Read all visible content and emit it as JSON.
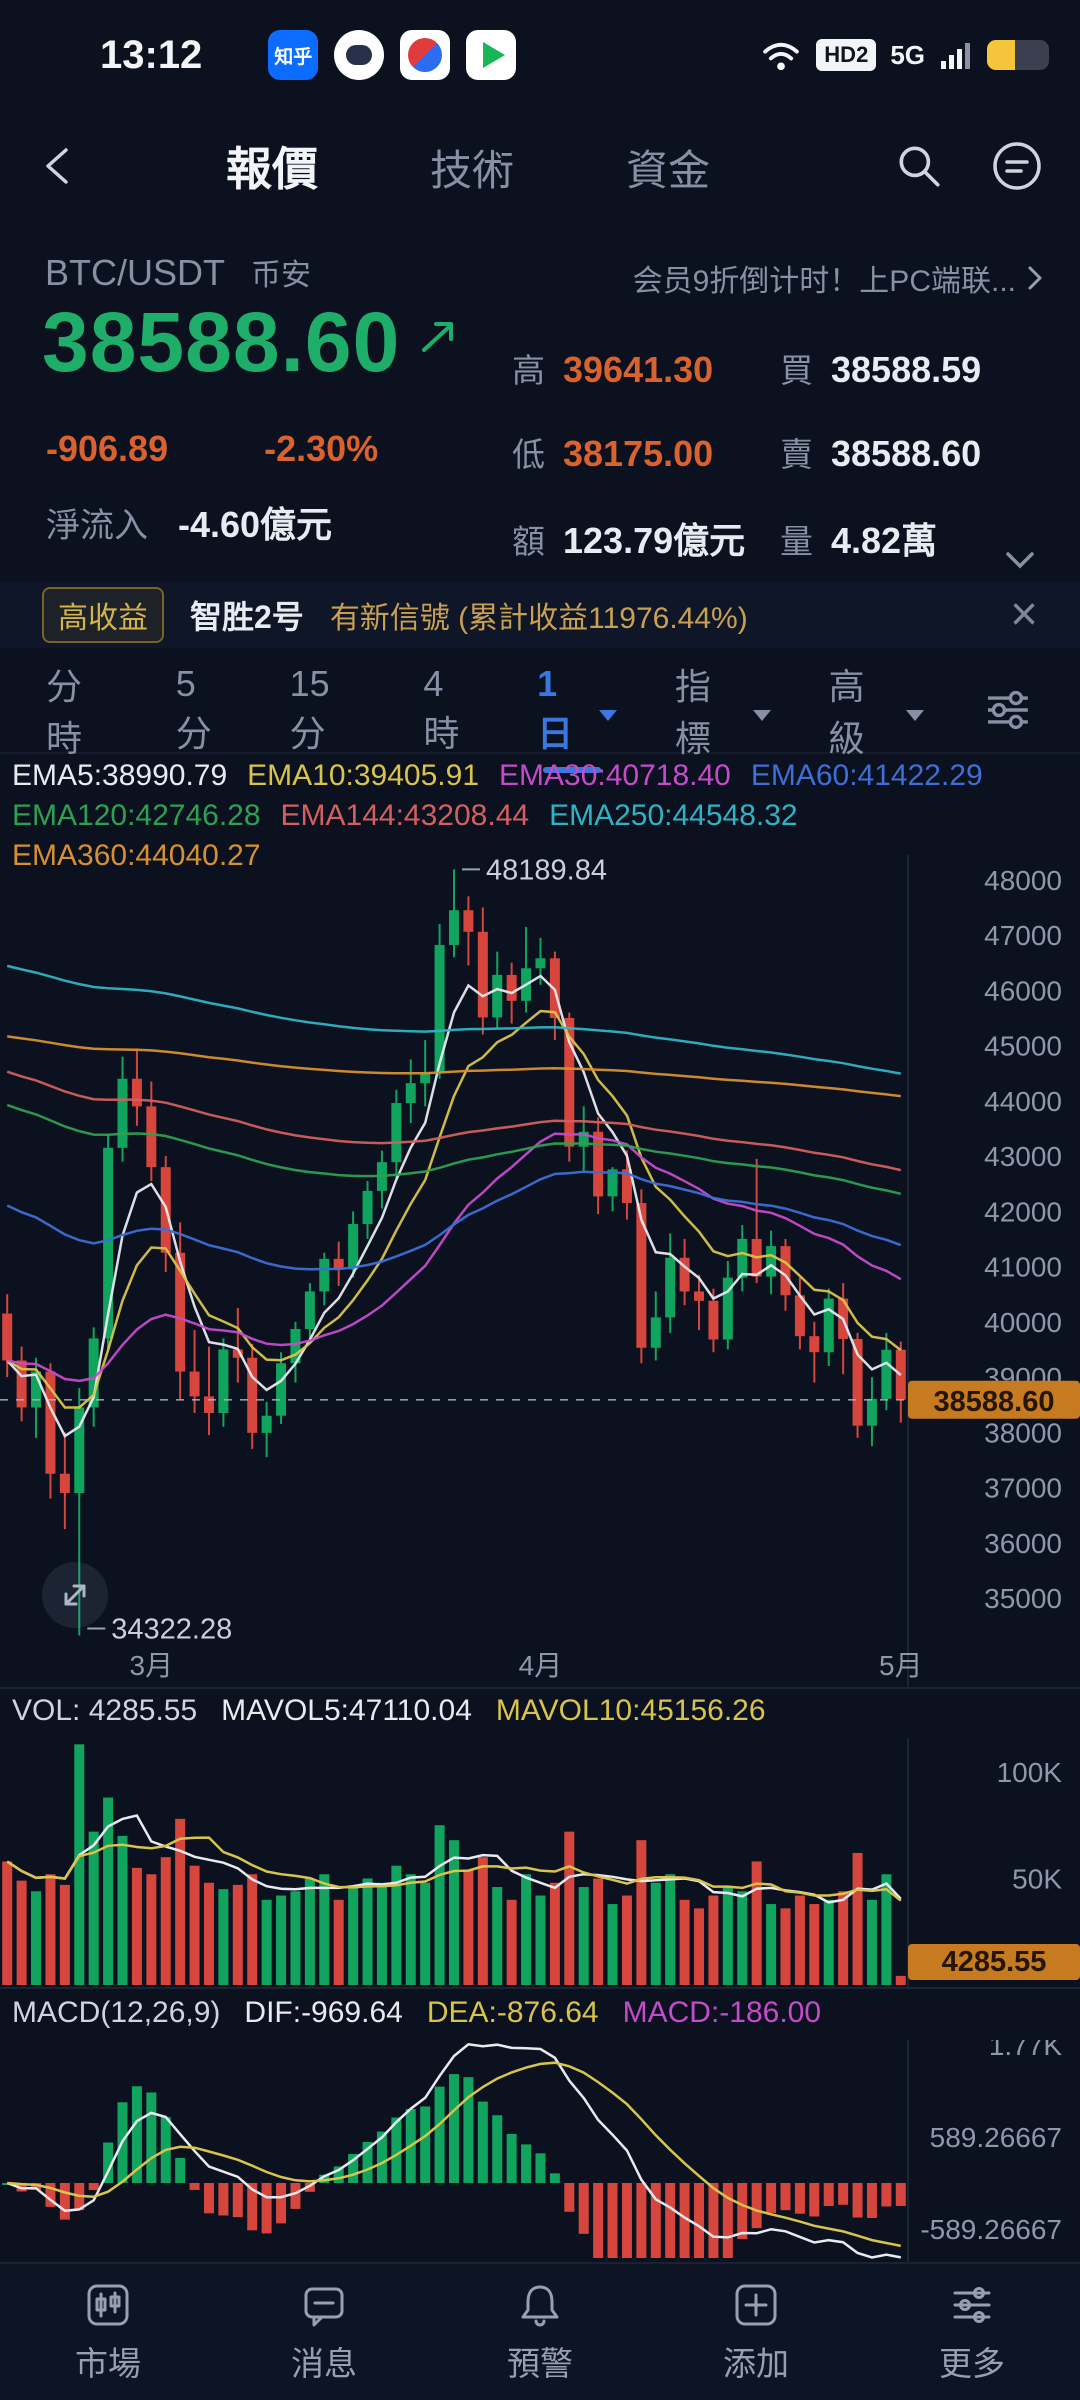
{
  "colors": {
    "up": "#10a45e",
    "down": "#d6463c",
    "down_text": "#d9622f",
    "price_up": "#1fae6a",
    "accent": "#3b77e0",
    "yellow": "#d9c44b",
    "magenta": "#c44ccb",
    "gold": "#c9a052",
    "tag_bg": "#c77b20"
  },
  "status_bar": {
    "time": "13:12",
    "zhihu_badge": "知乎",
    "hd_badge": "HD2",
    "network": "5G"
  },
  "nav": {
    "tabs": [
      {
        "label": "報價"
      },
      {
        "label": "技術"
      },
      {
        "label": "資金"
      }
    ]
  },
  "quote": {
    "symbol": "BTC/USDT",
    "exchange": "币安",
    "promo": "会员9折倒计时！上PC端联...",
    "price": "38588.60",
    "change": "-906.89",
    "change_pct": "-2.30%",
    "net_inflow_label": "淨流入",
    "net_inflow_value": "-4.60億元",
    "stats": [
      {
        "label": "高",
        "value": "39641.30"
      },
      {
        "label": "買",
        "value": "38588.59"
      },
      {
        "label": "低",
        "value": "38175.00"
      },
      {
        "label": "賣",
        "value": "38588.60"
      },
      {
        "label": "額",
        "value": "123.79億元"
      },
      {
        "label": "量",
        "value": "4.82萬"
      }
    ]
  },
  "banner": {
    "badge": "高收益",
    "name": "智胜2号",
    "message": "有新信號 (累計收益11976.44%)",
    "close": "×"
  },
  "timeframe": {
    "items": [
      {
        "label": "分時"
      },
      {
        "label": "5分"
      },
      {
        "label": "15分"
      },
      {
        "label": "4時"
      },
      {
        "label": "1日",
        "active": true,
        "caret": true
      },
      {
        "label": "指標",
        "caret": true
      },
      {
        "label": "高級",
        "caret": true
      }
    ]
  },
  "chart_data": {
    "type": "candlestick",
    "symbol": "BTC/USDT",
    "interval": "1日",
    "price_range": {
      "max": 48450,
      "min": 34150
    },
    "y_ticks": [
      48000,
      47000,
      46000,
      45000,
      44000,
      43000,
      42000,
      41000,
      40000,
      39000,
      38000,
      37000,
      36000,
      35000
    ],
    "month_ticks": [
      {
        "label": "3月",
        "index": 10
      },
      {
        "label": "4月",
        "index": 37
      },
      {
        "label": "5月",
        "index": 62
      }
    ],
    "high_annotation": {
      "label": "48189.84",
      "value": 48189.84,
      "index": 31
    },
    "low_annotation": {
      "label": "34322.28",
      "value": 34322.28,
      "index": 5
    },
    "current_price": 38588.6,
    "current_price_label": "38588.60",
    "emas": [
      {
        "label": "EMA5:38990.79",
        "period": 5,
        "seed": null,
        "color": "#e8eaf0"
      },
      {
        "label": "EMA10:39405.91",
        "period": 10,
        "seed": null,
        "color": "#d9c44b"
      },
      {
        "label": "EMA30:40718.40",
        "period": 30,
        "seed": null,
        "color": "#c44ccb"
      },
      {
        "label": "EMA60:41422.29",
        "period": 60,
        "seed": 42200,
        "color": "#3d6fd6"
      },
      {
        "label": "EMA120:42746.28",
        "period": 120,
        "seed": 44000,
        "color": "#2ea052"
      },
      {
        "label": "EMA144:43208.44",
        "period": 144,
        "seed": 44600,
        "color": "#d45f5f"
      },
      {
        "label": "EMA250:44548.32",
        "period": 250,
        "seed": 46500,
        "color": "#2fb3c4"
      },
      {
        "label": "EMA360:44040.27",
        "period": 360,
        "seed": 45200,
        "color": "#d7902f"
      }
    ],
    "candles": [
      [
        40150,
        40500,
        39000,
        39300
      ],
      [
        39300,
        39550,
        38200,
        38450
      ],
      [
        38450,
        39350,
        37900,
        39100
      ],
      [
        39100,
        39250,
        36800,
        37250
      ],
      [
        37250,
        38000,
        36250,
        36900
      ],
      [
        36900,
        38800,
        34322.28,
        38450
      ],
      [
        38450,
        39900,
        38100,
        39700
      ],
      [
        39700,
        43400,
        39500,
        43150
      ],
      [
        43150,
        44800,
        42900,
        44400
      ],
      [
        44400,
        44950,
        43550,
        43900
      ],
      [
        43900,
        44350,
        42550,
        42800
      ],
      [
        42800,
        43000,
        40900,
        41250
      ],
      [
        41250,
        41800,
        38600,
        39100
      ],
      [
        39100,
        39850,
        38350,
        38650
      ],
      [
        38650,
        39550,
        37950,
        38350
      ],
      [
        38350,
        39700,
        38100,
        39500
      ],
      [
        39500,
        40250,
        38900,
        39350
      ],
      [
        39350,
        39600,
        37700,
        37990
      ],
      [
        37990,
        38550,
        37550,
        38300
      ],
      [
        38300,
        39450,
        38150,
        39250
      ],
      [
        39250,
        40000,
        38900,
        39870
      ],
      [
        39870,
        40700,
        39600,
        40550
      ],
      [
        40550,
        41250,
        40300,
        41140
      ],
      [
        41140,
        41450,
        40650,
        40950
      ],
      [
        40950,
        42000,
        40800,
        41770
      ],
      [
        41770,
        42550,
        41500,
        42370
      ],
      [
        42370,
        43100,
        42050,
        42890
      ],
      [
        42890,
        44200,
        42600,
        43960
      ],
      [
        43960,
        44750,
        43600,
        44320
      ],
      [
        44320,
        45100,
        43900,
        44500
      ],
      [
        44500,
        47200,
        44400,
        46820
      ],
      [
        46820,
        48189.84,
        46600,
        47450
      ],
      [
        47450,
        47700,
        46450,
        47060
      ],
      [
        47060,
        47500,
        45200,
        45510
      ],
      [
        45510,
        46700,
        45300,
        46280
      ],
      [
        46280,
        46500,
        45400,
        45810
      ],
      [
        45810,
        47150,
        45600,
        46400
      ],
      [
        46400,
        46950,
        46100,
        46580
      ],
      [
        46580,
        46700,
        45100,
        45500
      ],
      [
        45500,
        45600,
        42900,
        43170
      ],
      [
        43170,
        43900,
        42700,
        43440
      ],
      [
        43440,
        43700,
        41950,
        42270
      ],
      [
        42270,
        42800,
        42000,
        42760
      ],
      [
        42760,
        43100,
        41850,
        42150
      ],
      [
        42150,
        42400,
        39250,
        39530
      ],
      [
        39530,
        40550,
        39300,
        40080
      ],
      [
        40080,
        41600,
        39800,
        41160
      ],
      [
        41160,
        41500,
        40300,
        40550
      ],
      [
        40550,
        40850,
        39850,
        40380
      ],
      [
        40380,
        40600,
        39450,
        39680
      ],
      [
        39680,
        41100,
        39500,
        40800
      ],
      [
        40800,
        41750,
        40550,
        41500
      ],
      [
        41500,
        42950,
        40700,
        40820
      ],
      [
        40820,
        41650,
        40500,
        41370
      ],
      [
        41370,
        41500,
        40200,
        40480
      ],
      [
        40480,
        40800,
        39500,
        39740
      ],
      [
        39740,
        40000,
        38900,
        39450
      ],
      [
        39450,
        40600,
        39200,
        40420
      ],
      [
        40420,
        40700,
        39050,
        39690
      ],
      [
        39690,
        39800,
        37900,
        38120
      ],
      [
        38120,
        39000,
        37750,
        38605
      ],
      [
        38605,
        39800,
        38400,
        39495
      ],
      [
        39495,
        39641.3,
        38175,
        38588.6
      ]
    ],
    "volume": {
      "label": "VOL: 4285.55",
      "mavol5_label": "MAVOL5:47110.04",
      "mavol10_label": "MAVOL10:45156.26",
      "current_label": "4285.55",
      "y_ticks": [
        {
          "label": "100K",
          "value": 100000
        },
        {
          "label": "50K",
          "value": 50000
        }
      ],
      "values": [
        58000,
        49000,
        44000,
        52000,
        47000,
        113000,
        72000,
        88000,
        70000,
        55000,
        52000,
        60000,
        78000,
        56000,
        48000,
        45000,
        47000,
        52000,
        40000,
        42000,
        44000,
        50000,
        52000,
        40000,
        46000,
        50000,
        48000,
        56000,
        52000,
        48000,
        75000,
        68000,
        54000,
        60000,
        46000,
        40000,
        52000,
        42000,
        48000,
        72000,
        46000,
        50000,
        38000,
        42000,
        68000,
        48000,
        52000,
        40000,
        36000,
        42000,
        46000,
        44000,
        58000,
        38000,
        36000,
        42000,
        38000,
        40000,
        44000,
        62000,
        40000,
        52000,
        4285.55
      ]
    },
    "macd": {
      "title": "MACD(12,26,9)",
      "dif_label": "DIF:-969.64",
      "dea_label": "DEA:-876.64",
      "macd_label": "MACD:-186.00",
      "y_ticks": [
        {
          "label": "1.77K",
          "value": 1770
        },
        {
          "label": "589.26667",
          "value": 589.26667
        },
        {
          "label": "-589.26667",
          "value": -589.26667
        }
      ]
    }
  },
  "bottom_nav": {
    "items": [
      {
        "label": "市場"
      },
      {
        "label": "消息"
      },
      {
        "label": "預警"
      },
      {
        "label": "添加"
      },
      {
        "label": "更多"
      }
    ]
  }
}
